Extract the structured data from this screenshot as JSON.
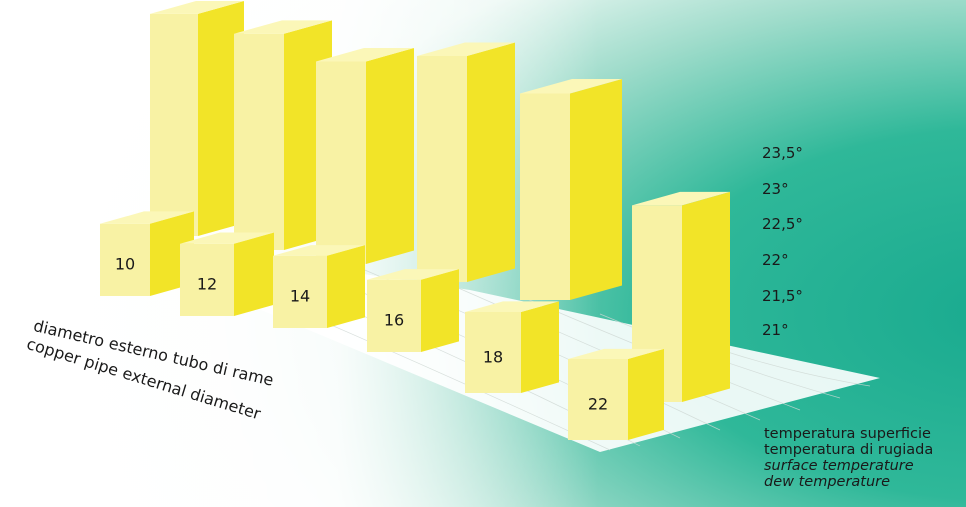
{
  "chart_data": {
    "type": "bar",
    "subtype": "3d-paired-bars",
    "x_axis_label_it": "diametro esterno tubo di rame",
    "x_axis_label_en": "copper pipe external diameter",
    "categories": [
      "10",
      "12",
      "14",
      "16",
      "18",
      "22"
    ],
    "y_tick_labels": [
      "23,5°",
      "23°",
      "22,5°",
      "22°",
      "21,5°",
      "21°"
    ],
    "ylim": [
      21,
      23.5
    ],
    "series": [
      {
        "name": "temperatura superficie / surface temperature",
        "values": [
          23.35,
          23.2,
          22.85,
          23.45,
          22.95,
          22.7
        ]
      },
      {
        "name": "temperatura di rugiada / dew temperature",
        "values": [
          21.15,
          21.15,
          21.15,
          21.15,
          21.2,
          21.2
        ]
      }
    ],
    "legend": [
      {
        "text": "temperatura superficie",
        "italic": false
      },
      {
        "text": "temperatura di rugiada",
        "italic": false
      },
      {
        "text": "surface temperature",
        "italic": true
      },
      {
        "text": "dew temperature",
        "italic": true
      }
    ],
    "colors": {
      "bar_front": "#f8f2a4",
      "bar_side": "#f2e428",
      "bar_top": "#fbf7b8",
      "teal": "#1fb195"
    }
  }
}
